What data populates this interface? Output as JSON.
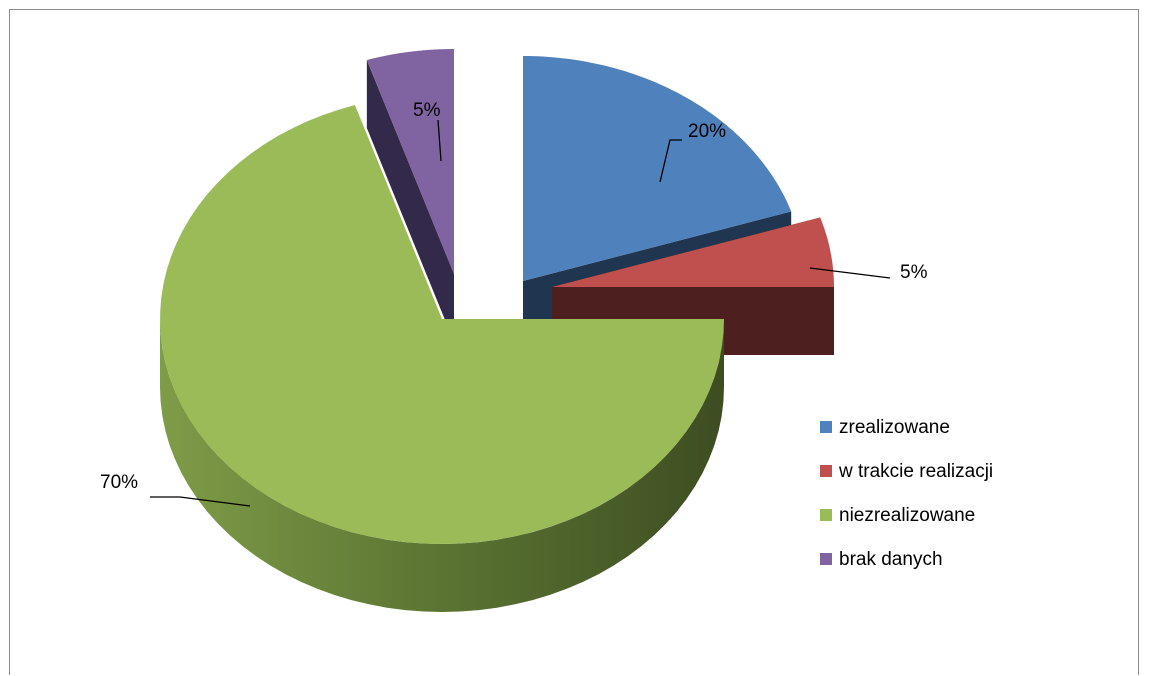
{
  "chart_data": {
    "type": "pie",
    "style": "3d-exploded",
    "categories": [
      "zrealizowane",
      "w trakcie realizacji",
      "niezrealizowane",
      "brak danych"
    ],
    "values": [
      20,
      5,
      70,
      5
    ],
    "labels": [
      "20%",
      "5%",
      "70%",
      "5%"
    ],
    "colors": [
      "#4f81bd",
      "#c0504d",
      "#9bbb59",
      "#8064a2"
    ],
    "legend_position": "right",
    "title": ""
  }
}
